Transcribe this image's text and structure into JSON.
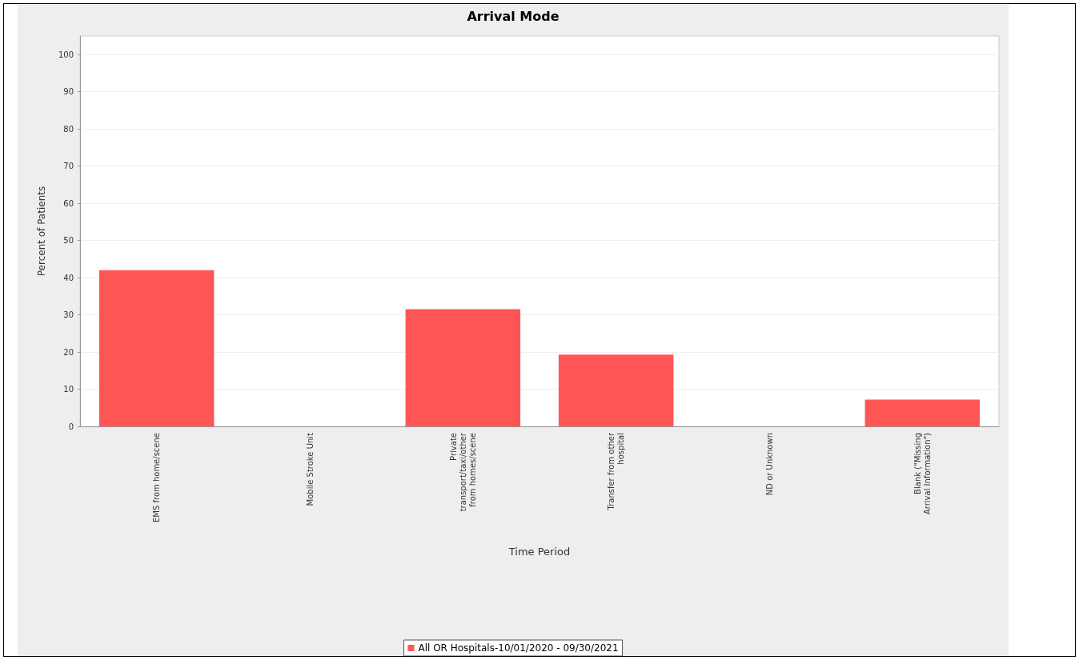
{
  "chart_data": {
    "type": "bar",
    "title": "Arrival Mode",
    "xlabel": "Time Period",
    "ylabel": "Percent of Patients",
    "categories": [
      "EMS from home/scene",
      "Mobile Stroke Unit",
      "Private\ntransport/taxi/other\nfrom homes/scene",
      "Transfer from other\nhospital",
      "ND or Unknown",
      "Blank (\"Missing\nArrival Information\")"
    ],
    "series": [
      {
        "name": "All OR Hospitals-10/01/2020 - 09/30/2021",
        "color": "#ff5555",
        "values": [
          42,
          0,
          31.5,
          19.3,
          0,
          7.2
        ]
      }
    ],
    "ylim": [
      0,
      105
    ],
    "yticks": [
      0,
      10,
      20,
      30,
      40,
      50,
      60,
      70,
      80,
      90,
      100
    ],
    "grid": "y",
    "legend": "bottom"
  }
}
